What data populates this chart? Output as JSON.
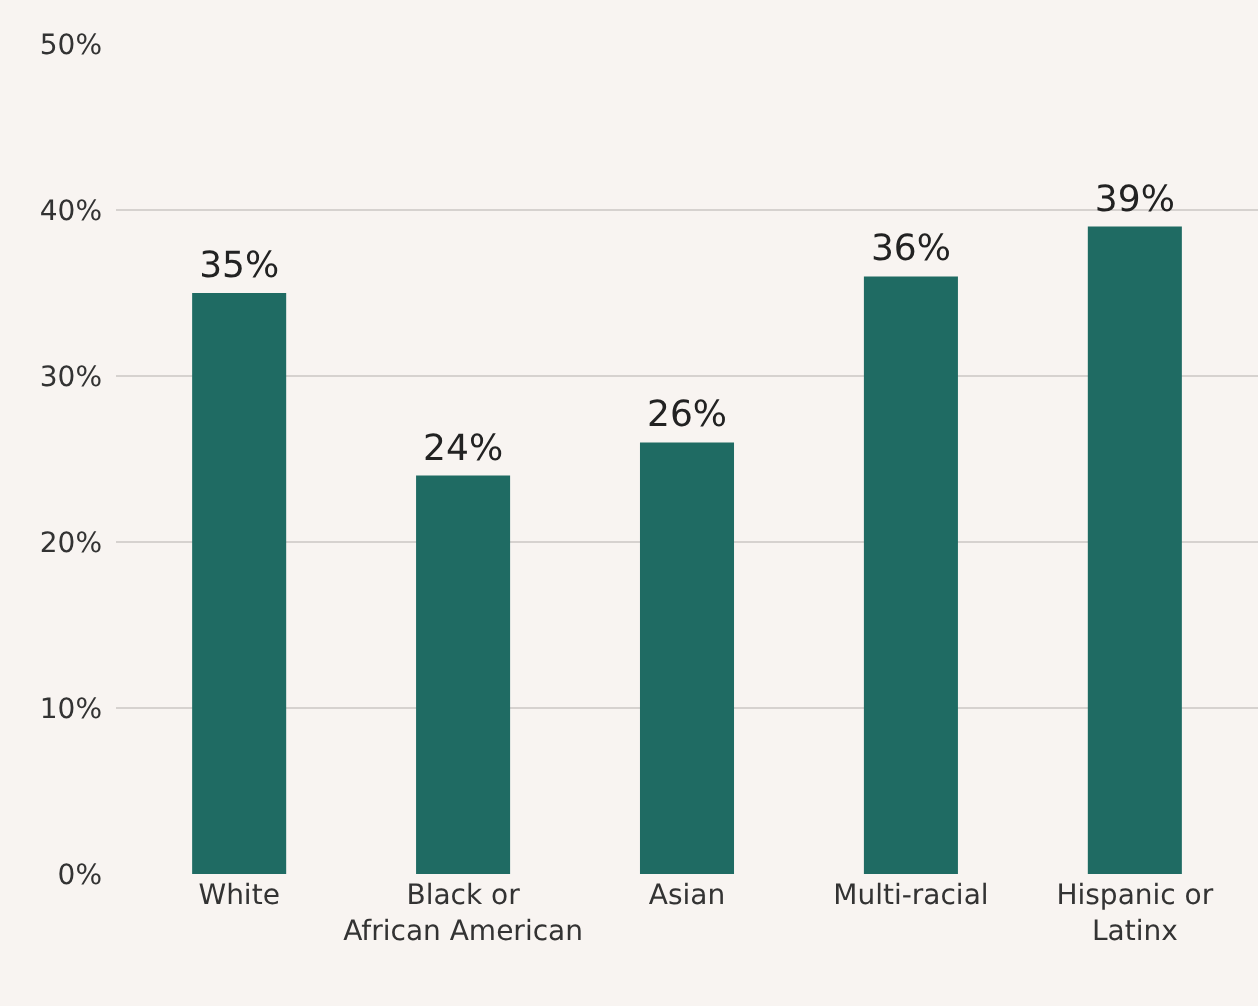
{
  "chart_data": {
    "type": "bar",
    "categories": [
      "White",
      "Black or\nAfrican American",
      "Asian",
      "Multi-racial",
      "Hispanic or\nLatinx"
    ],
    "values": [
      35,
      24,
      26,
      36,
      39
    ],
    "color": "#1f6b63",
    "ylim": [
      0,
      50
    ],
    "yticks": [
      {
        "value": 0,
        "label": "0%"
      },
      {
        "value": 10,
        "label": "10%"
      },
      {
        "value": 20,
        "label": "20%"
      },
      {
        "value": 30,
        "label": "30%"
      },
      {
        "value": 40,
        "label": "40%"
      },
      {
        "value": 50,
        "label": "50%"
      }
    ],
    "value_labels": [
      "35%",
      "24%",
      "26%",
      "36%",
      "39%"
    ],
    "grid": "y",
    "legend": false
  }
}
